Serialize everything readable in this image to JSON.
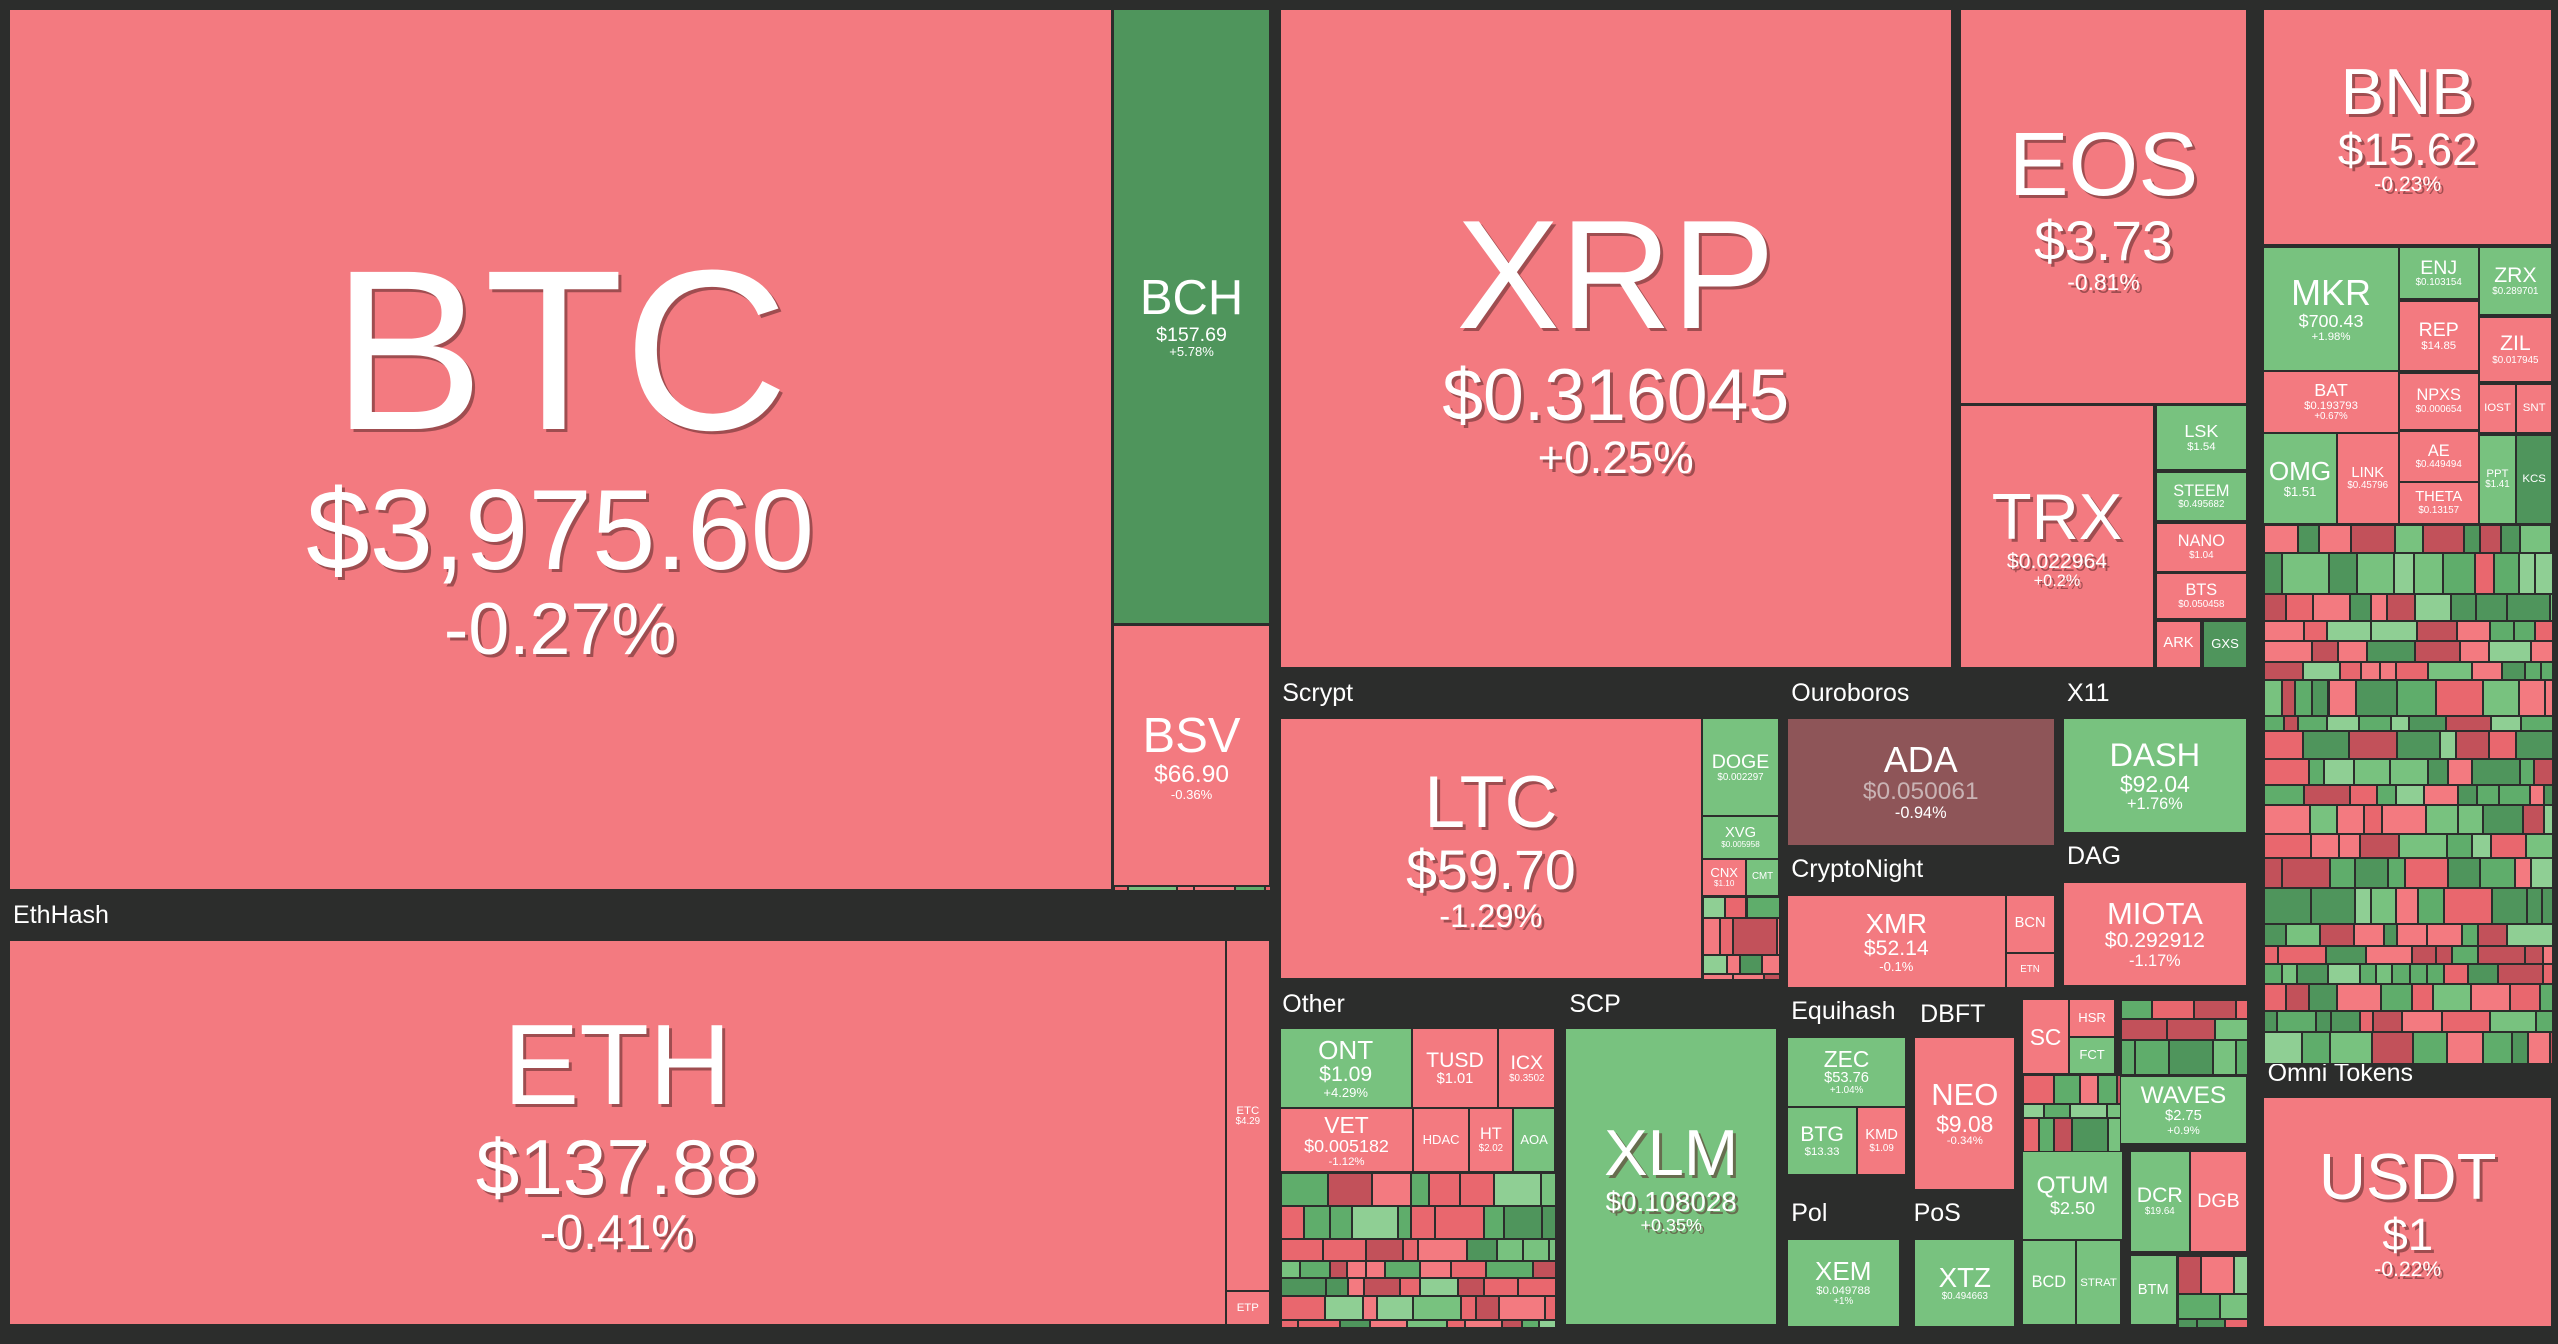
{
  "group_labels": [
    "EthHash",
    "Scrypt",
    "Ouroboros",
    "X11",
    "CryptoNight",
    "DAG",
    "Other",
    "SCP",
    "Equihash",
    "DBFT",
    "Pol",
    "PoS",
    "Omni Tokens"
  ],
  "tiles": [
    {
      "symbol": "BTC",
      "price": "$3,975.60",
      "change": "-0.27%"
    },
    {
      "symbol": "BCH",
      "price": "$157.69",
      "change": "+5.78%"
    },
    {
      "symbol": "BSV",
      "price": "$66.90",
      "change": "-0.36%"
    },
    {
      "symbol": "ETH",
      "price": "$137.88",
      "change": "-0.41%"
    },
    {
      "symbol": "ETC",
      "price": "$4.29"
    },
    {
      "symbol": "ETP"
    },
    {
      "symbol": "XRP",
      "price": "$0.316045",
      "change": "+0.25%"
    },
    {
      "symbol": "EOS",
      "price": "$3.73",
      "change": "-0.81%"
    },
    {
      "symbol": "TRX",
      "price": "$0.022964",
      "change": "+0.2%"
    },
    {
      "symbol": "LSK",
      "price": "$1.54"
    },
    {
      "symbol": "STEEM",
      "price": "$0.495682"
    },
    {
      "symbol": "NANO",
      "price": "$1.04"
    },
    {
      "symbol": "BTS",
      "price": "$0.050458"
    },
    {
      "symbol": "ARK"
    },
    {
      "symbol": "GXS"
    },
    {
      "symbol": "BNB",
      "price": "$15.62",
      "change": "-0.23%"
    },
    {
      "symbol": "MKR",
      "price": "$700.43",
      "change": "+1.98%"
    },
    {
      "symbol": "ENJ",
      "price": "$0.103154"
    },
    {
      "symbol": "ZRX",
      "price": "$0.289701"
    },
    {
      "symbol": "REP",
      "price": "$14.85"
    },
    {
      "symbol": "ZIL",
      "price": "$0.017945"
    },
    {
      "symbol": "BAT",
      "price": "$0.193793",
      "change": "+0.67%"
    },
    {
      "symbol": "NPXS",
      "price": "$0.000654"
    },
    {
      "symbol": "IOST"
    },
    {
      "symbol": "SNT"
    },
    {
      "symbol": "OMG",
      "price": "$1.51"
    },
    {
      "symbol": "LINK",
      "price": "$0.45796"
    },
    {
      "symbol": "AE",
      "price": "$0.449494"
    },
    {
      "symbol": "THETA",
      "price": "$0.13157"
    },
    {
      "symbol": "PPT",
      "price": "$1.41"
    },
    {
      "symbol": "KCS"
    },
    {
      "symbol": "LTC",
      "price": "$59.70",
      "change": "-1.29%"
    },
    {
      "symbol": "DOGE",
      "price": "$0.002297"
    },
    {
      "symbol": "XVG",
      "price": "$0.005958"
    },
    {
      "symbol": "CNX",
      "price": "$1.10"
    },
    {
      "symbol": "CMT"
    },
    {
      "symbol": "ADA",
      "price": "$0.050061",
      "change": "-0.94%"
    },
    {
      "symbol": "DASH",
      "price": "$92.04",
      "change": "+1.76%"
    },
    {
      "symbol": "XMR",
      "price": "$52.14",
      "change": "-0.1%"
    },
    {
      "symbol": "BCN"
    },
    {
      "symbol": "ETN"
    },
    {
      "symbol": "MIOTA",
      "price": "$0.292912",
      "change": "-1.17%"
    },
    {
      "symbol": "ONT",
      "price": "$1.09",
      "change": "+4.29%"
    },
    {
      "symbol": "TUSD",
      "price": "$1.01"
    },
    {
      "symbol": "ICX",
      "price": "$0.3502"
    },
    {
      "symbol": "VET",
      "price": "$0.005182",
      "change": "-1.12%"
    },
    {
      "symbol": "HDAC"
    },
    {
      "symbol": "HT",
      "price": "$2.02"
    },
    {
      "symbol": "AOA"
    },
    {
      "symbol": "XLM",
      "price": "$0.108028",
      "change": "+0.35%"
    },
    {
      "symbol": "ZEC",
      "price": "$53.76",
      "change": "+1.04%"
    },
    {
      "symbol": "BTG",
      "price": "$13.33"
    },
    {
      "symbol": "KMD",
      "price": "$1.09"
    },
    {
      "symbol": "NEO",
      "price": "$9.08",
      "change": "-0.34%"
    },
    {
      "symbol": "XEM",
      "price": "$0.049788",
      "change": "+1%"
    },
    {
      "symbol": "XTZ",
      "price": "$0.494663"
    },
    {
      "symbol": "SC"
    },
    {
      "symbol": "HSR"
    },
    {
      "symbol": "FCT"
    },
    {
      "symbol": "QTUM",
      "price": "$2.50"
    },
    {
      "symbol": "BCD"
    },
    {
      "symbol": "STRAT"
    },
    {
      "symbol": "WAVES",
      "price": "$2.75",
      "change": "+0.9%"
    },
    {
      "symbol": "DCR",
      "price": "$19.64"
    },
    {
      "symbol": "DGB"
    },
    {
      "symbol": "BTM"
    },
    {
      "symbol": "USDT",
      "price": "$1",
      "change": "-0.22%"
    }
  ]
}
